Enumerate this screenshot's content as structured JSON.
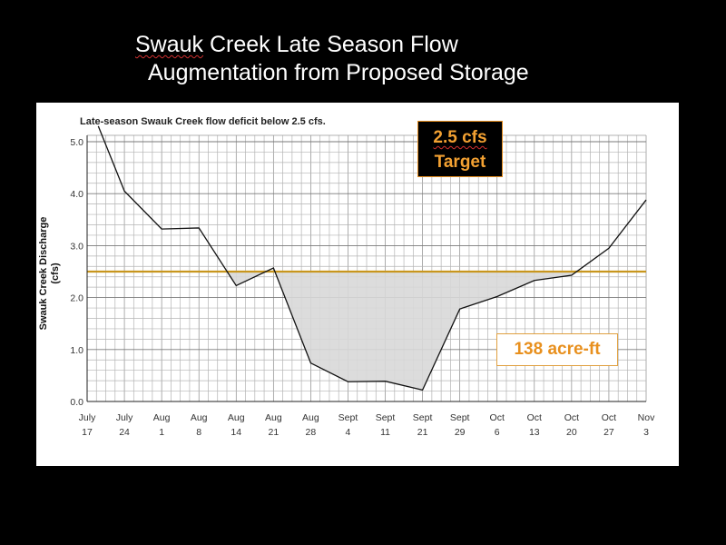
{
  "slide": {
    "title_line1_word": "Swauk",
    "title_line1_rest": " Creek Late Season Flow",
    "title_line2": "Augmentation from Proposed Storage"
  },
  "chart_data": {
    "type": "area",
    "title": "Late-season Swauk Creek flow deficit below 2.5 cfs.",
    "xlabel": "",
    "ylabel": "Swauk Creek Discharge",
    "ylabel_unit": "(cfs)",
    "categories": [
      [
        "July",
        "17"
      ],
      [
        "July",
        "24"
      ],
      [
        "Aug",
        "1"
      ],
      [
        "Aug",
        "8"
      ],
      [
        "Aug",
        "14"
      ],
      [
        "Aug",
        "21"
      ],
      [
        "Aug",
        "28"
      ],
      [
        "Sept",
        "4"
      ],
      [
        "Sept",
        "11"
      ],
      [
        "Sept",
        "21"
      ],
      [
        "Sept",
        "29"
      ],
      [
        "Oct",
        "6"
      ],
      [
        "Oct",
        "13"
      ],
      [
        "Oct",
        "20"
      ],
      [
        "Oct",
        "27"
      ],
      [
        "Nov",
        "3"
      ]
    ],
    "yticks": [
      "0.0",
      "1.0",
      "2.0",
      "3.0",
      "4.0",
      "5.0"
    ],
    "ylim": [
      0,
      5.3
    ],
    "series": [
      {
        "values": [
          [
            0.3,
            5.3
          ],
          [
            1,
            4.05
          ],
          [
            2,
            3.32
          ],
          [
            3,
            3.34
          ],
          [
            4,
            2.23
          ],
          [
            5,
            2.57
          ],
          [
            6,
            0.74
          ],
          [
            7,
            0.38
          ],
          [
            8,
            0.39
          ],
          [
            9,
            0.22
          ],
          [
            10,
            1.78
          ],
          [
            11,
            2.02
          ],
          [
            12,
            2.33
          ],
          [
            13,
            2.43
          ],
          [
            14,
            2.95
          ],
          [
            15,
            3.88
          ]
        ]
      }
    ],
    "target": {
      "value": 2.5,
      "color": "#c8961e"
    },
    "deficit_fill": "#d8d8d8",
    "grid": true,
    "annotations": {
      "target_line1": "2.5 cfs",
      "target_line2": "Target",
      "volume": "138 acre-ft"
    }
  }
}
